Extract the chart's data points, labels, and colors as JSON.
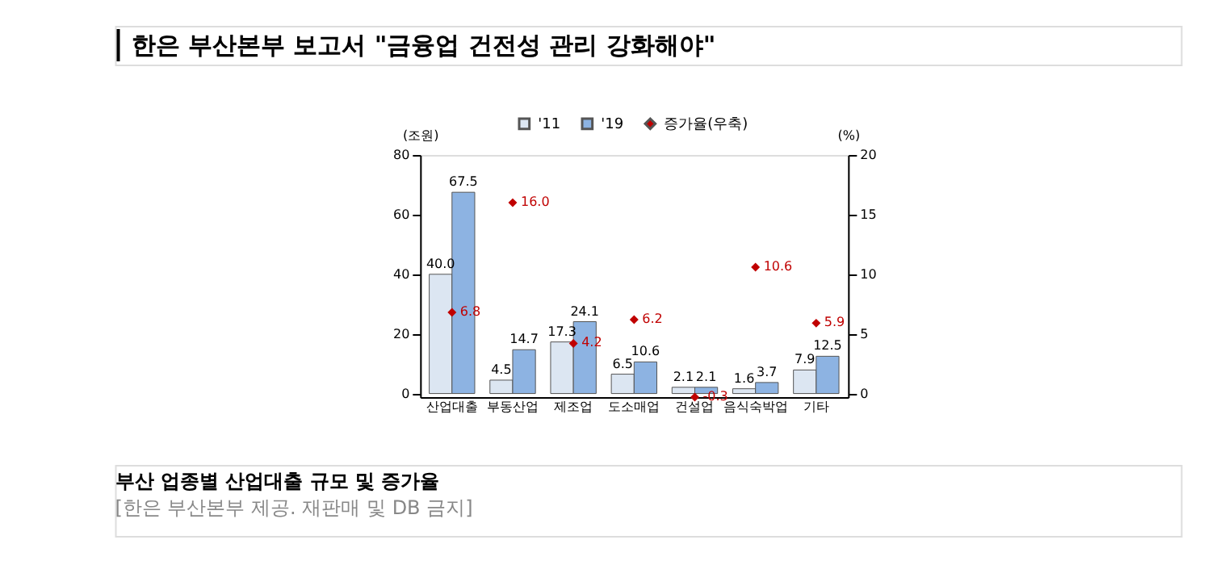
{
  "chart_data": {
    "type": "bar",
    "title": "한은 부산본부 보고서 \"금융업 건전성 관리 강화해야\"",
    "subtitle": "부산 업종별 산업대출 규모 및 증가율",
    "annotations": [
      "[한은 부산본부 제공. 재판매 및 DB 금지]"
    ],
    "categories": [
      "산업대출",
      "부동산업",
      "제조업",
      "도소매업",
      "건설업",
      "음식숙박업",
      "기타"
    ],
    "ylabel": "(조원)",
    "y2label": "(%)",
    "ylim": [
      -1.2,
      80
    ],
    "yticks": [
      0,
      20,
      40,
      60,
      80
    ],
    "y2lim": [
      -0.3,
      20
    ],
    "y2ticks": [
      0,
      5,
      10,
      15,
      20
    ],
    "series": [
      {
        "name": "'11",
        "color": "#dce6f2",
        "values": [
          40.0,
          4.5,
          17.3,
          6.5,
          2.1,
          1.6,
          7.9
        ],
        "value_labels": [
          "40.0",
          "4.5",
          "17.3",
          "6.5",
          "2.1",
          "1.6",
          "7.9"
        ]
      },
      {
        "name": "'19",
        "color": "#8db3e2",
        "values": [
          67.5,
          14.7,
          24.1,
          10.6,
          2.1,
          3.7,
          12.5
        ],
        "value_labels": [
          "67.5",
          "14.7",
          "24.1",
          "10.6",
          "2.1",
          "3.7",
          "12.5"
        ]
      },
      {
        "name": "증가율(우축)",
        "color": "#c00000",
        "type": "scatter",
        "axis": "y2",
        "marker": "diamond",
        "values": [
          6.8,
          16.0,
          4.2,
          6.2,
          -0.3,
          10.6,
          5.9
        ],
        "value_labels": [
          "6.8",
          "16.0",
          "4.2",
          "6.2",
          "-0.3",
          "10.6",
          "5.9"
        ]
      }
    ],
    "legend": "top",
    "grid": false
  }
}
